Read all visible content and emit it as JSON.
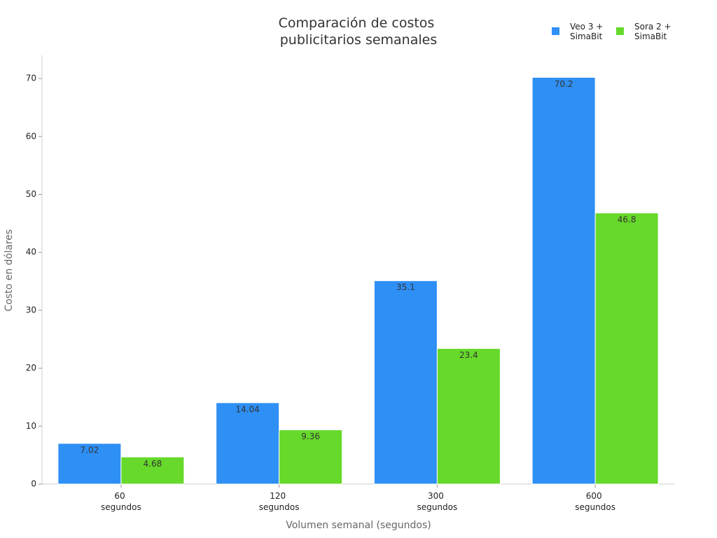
{
  "chart_data": {
    "type": "bar",
    "title": "Comparación de costos publicitarios semanales",
    "x_label": "Volumen semanal (segundos)",
    "y_label": "Costo en dólares",
    "categories": [
      "60 segundos",
      "120 segundos",
      "300 segundos",
      "600 segundos"
    ],
    "series": [
      {
        "name": "Veo 3 + SimaBit",
        "color": "#2e8ff5",
        "values": [
          7.02,
          14.04,
          35.1,
          70.2
        ]
      },
      {
        "name": "Sora 2 + SimaBit",
        "color": "#66d92a",
        "values": [
          4.68,
          9.36,
          23.4,
          46.8
        ]
      }
    ],
    "ylim": [
      0,
      74
    ],
    "yticks": [
      0,
      10,
      20,
      30,
      40,
      50,
      60,
      70
    ],
    "legend": "upper right",
    "grid": false
  }
}
